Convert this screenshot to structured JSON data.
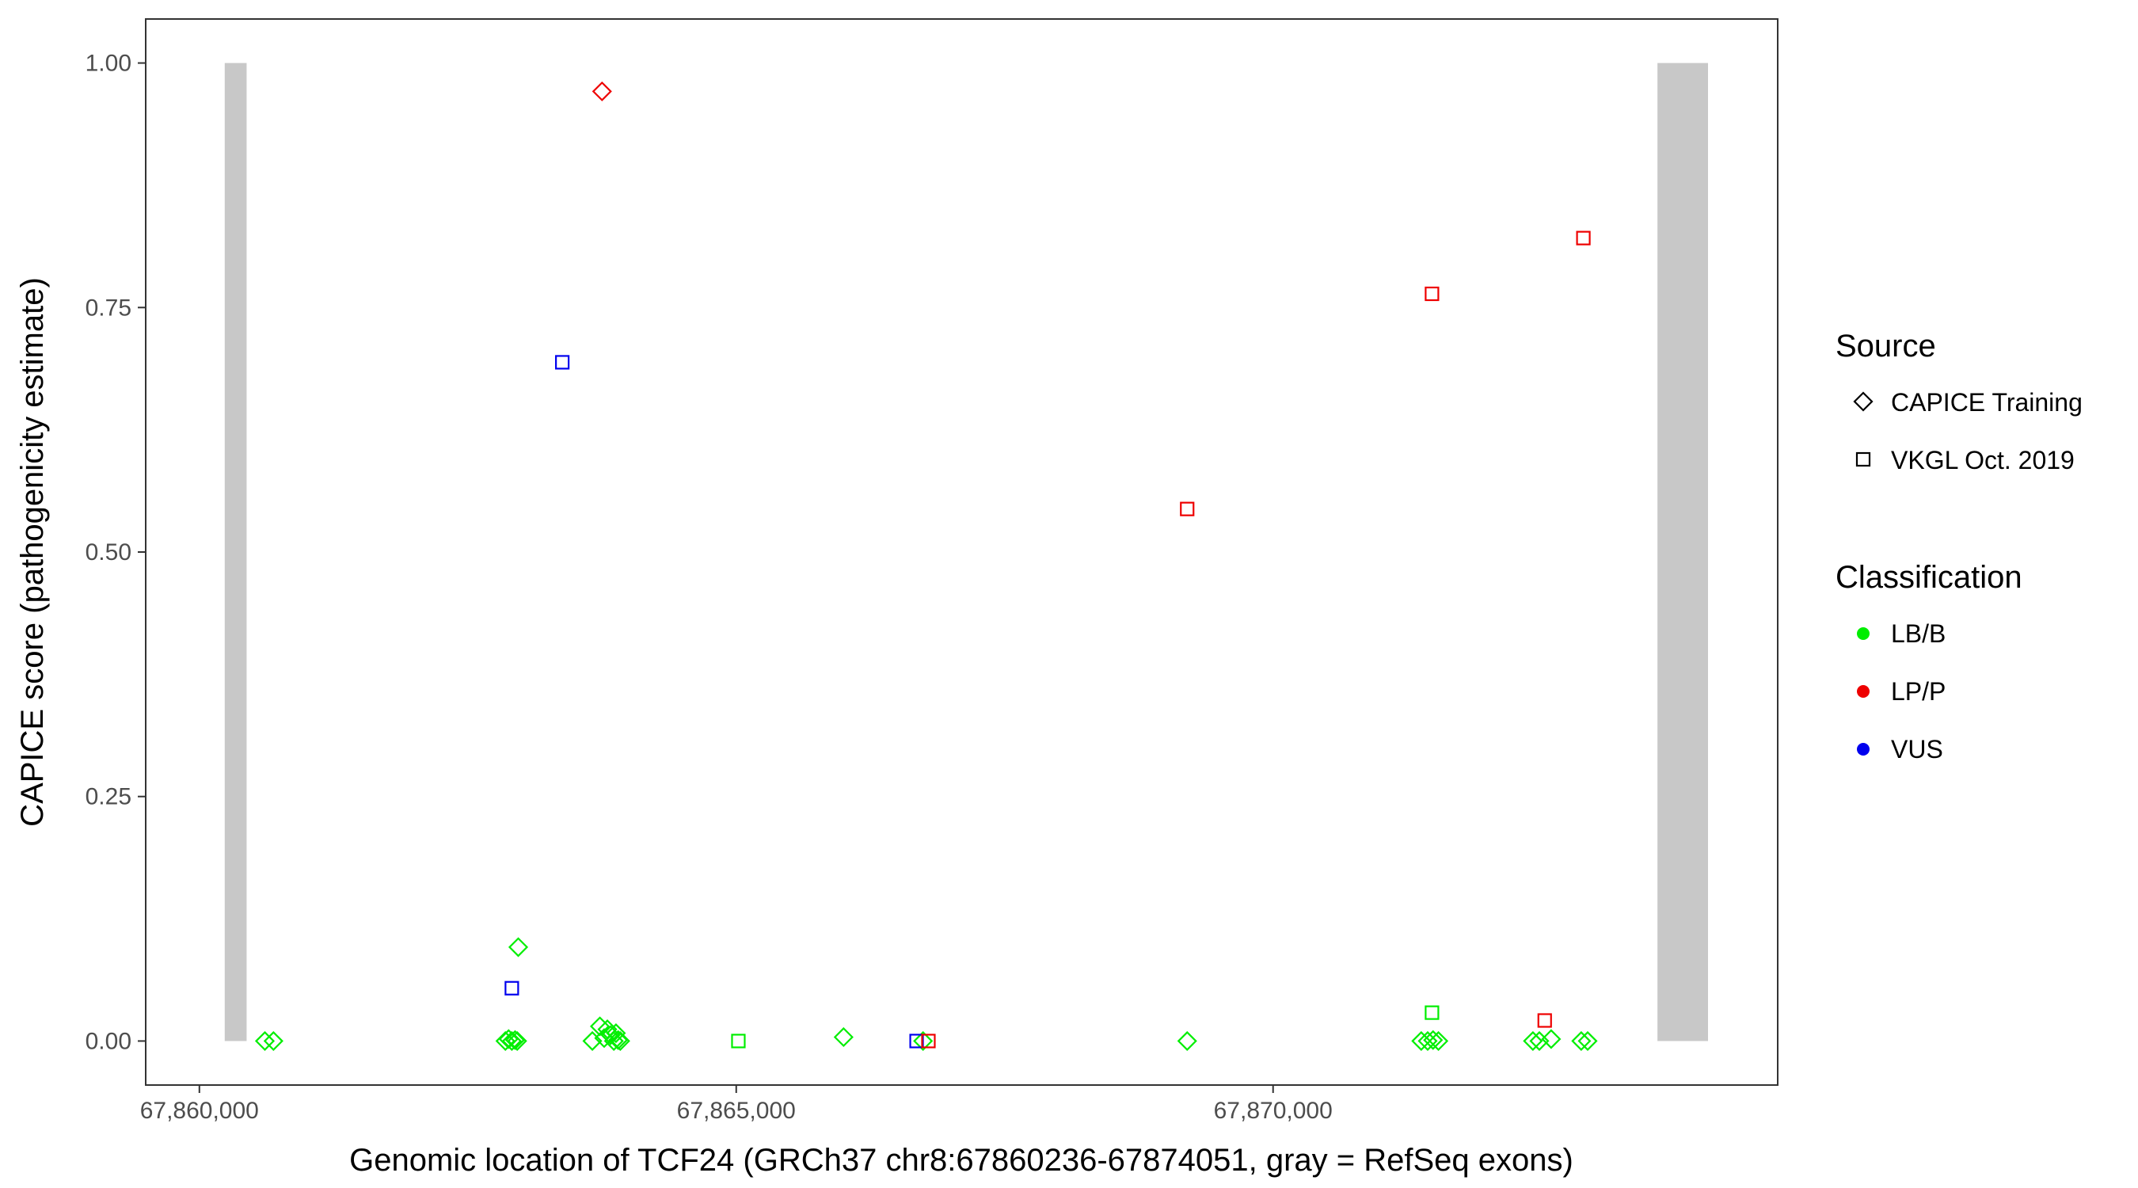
{
  "chart_data": {
    "type": "scatter",
    "title": "",
    "xlabel": "Genomic location of TCF24 (GRCh37 chr8:67860236-67874051, gray = RefSeq exons)",
    "ylabel": "CAPICE score (pathogenicity estimate)",
    "xlim": [
      67859500,
      67874700
    ],
    "ylim": [
      -0.045,
      1.045
    ],
    "x_ticks": [
      67860000,
      67865000,
      67870000
    ],
    "x_tick_labels": [
      "67,860,000",
      "67,865,000",
      "67,870,000"
    ],
    "y_ticks": [
      0,
      0.25,
      0.5,
      0.75,
      1.0
    ],
    "y_tick_labels": [
      "0.00",
      "0.25",
      "0.50",
      "0.75",
      "1.00"
    ],
    "grid": false,
    "exons": [
      {
        "start": 67860236,
        "end": 67860440,
        "ymin": 0,
        "ymax": 1
      },
      {
        "start": 67873580,
        "end": 67874051,
        "ymin": 0,
        "ymax": 1
      }
    ],
    "legend_position": "right",
    "legend_source": {
      "title": "Source",
      "items": [
        {
          "label": "CAPICE Training",
          "shape": "diamond"
        },
        {
          "label": "VKGL Oct. 2019",
          "shape": "square"
        }
      ]
    },
    "legend_classification": {
      "title": "Classification",
      "items": [
        {
          "label": "LB/B",
          "color": "#00ee00"
        },
        {
          "label": "LP/P",
          "color": "#ee0000"
        },
        {
          "label": "VUS",
          "color": "#0000ee"
        }
      ]
    },
    "points": [
      {
        "x": 67860610,
        "y": 0.0,
        "source": "CAPICE Training",
        "cls": "LB/B"
      },
      {
        "x": 67860690,
        "y": 0.0,
        "source": "CAPICE Training",
        "cls": "LB/B"
      },
      {
        "x": 67862850,
        "y": 0.0,
        "source": "CAPICE Training",
        "cls": "LB/B"
      },
      {
        "x": 67862880,
        "y": 0.002,
        "source": "CAPICE Training",
        "cls": "LB/B"
      },
      {
        "x": 67862910,
        "y": 0.0,
        "source": "CAPICE Training",
        "cls": "LB/B"
      },
      {
        "x": 67862940,
        "y": 0.001,
        "source": "CAPICE Training",
        "cls": "LB/B"
      },
      {
        "x": 67862960,
        "y": 0.0,
        "source": "CAPICE Training",
        "cls": "LB/B"
      },
      {
        "x": 67862970,
        "y": 0.096,
        "source": "CAPICE Training",
        "cls": "LB/B"
      },
      {
        "x": 67862910,
        "y": 0.054,
        "source": "VKGL Oct. 2019",
        "cls": "VUS"
      },
      {
        "x": 67863380,
        "y": 0.694,
        "source": "VKGL Oct. 2019",
        "cls": "VUS"
      },
      {
        "x": 67863750,
        "y": 0.971,
        "source": "CAPICE Training",
        "cls": "LP/P"
      },
      {
        "x": 67863660,
        "y": 0.0,
        "source": "CAPICE Training",
        "cls": "LB/B"
      },
      {
        "x": 67863730,
        "y": 0.015,
        "source": "CAPICE Training",
        "cls": "LB/B"
      },
      {
        "x": 67863770,
        "y": 0.003,
        "source": "CAPICE Training",
        "cls": "LB/B"
      },
      {
        "x": 67863800,
        "y": 0.012,
        "source": "CAPICE Training",
        "cls": "LB/B"
      },
      {
        "x": 67863830,
        "y": 0.006,
        "source": "CAPICE Training",
        "cls": "LB/B"
      },
      {
        "x": 67863860,
        "y": 0.0,
        "source": "CAPICE Training",
        "cls": "LB/B"
      },
      {
        "x": 67863880,
        "y": 0.008,
        "source": "CAPICE Training",
        "cls": "LB/B"
      },
      {
        "x": 67863900,
        "y": 0.001,
        "source": "CAPICE Training",
        "cls": "LB/B"
      },
      {
        "x": 67863920,
        "y": 0.0,
        "source": "CAPICE Training",
        "cls": "LB/B"
      },
      {
        "x": 67865020,
        "y": 0.0,
        "source": "VKGL Oct. 2019",
        "cls": "LB/B"
      },
      {
        "x": 67866000,
        "y": 0.004,
        "source": "CAPICE Training",
        "cls": "LB/B"
      },
      {
        "x": 67866740,
        "y": 0.0,
        "source": "CAPICE Training",
        "cls": "LB/B"
      },
      {
        "x": 67866680,
        "y": 0.0,
        "source": "VKGL Oct. 2019",
        "cls": "VUS"
      },
      {
        "x": 67866790,
        "y": 0.0,
        "source": "VKGL Oct. 2019",
        "cls": "LP/P"
      },
      {
        "x": 67869200,
        "y": 0.0,
        "source": "CAPICE Training",
        "cls": "LB/B"
      },
      {
        "x": 67869200,
        "y": 0.544,
        "source": "VKGL Oct. 2019",
        "cls": "LP/P"
      },
      {
        "x": 67871480,
        "y": 0.764,
        "source": "VKGL Oct. 2019",
        "cls": "LP/P"
      },
      {
        "x": 67871480,
        "y": 0.029,
        "source": "VKGL Oct. 2019",
        "cls": "LB/B"
      },
      {
        "x": 67871380,
        "y": 0.0,
        "source": "CAPICE Training",
        "cls": "LB/B"
      },
      {
        "x": 67871440,
        "y": 0.0,
        "source": "CAPICE Training",
        "cls": "LB/B"
      },
      {
        "x": 67871490,
        "y": 0.001,
        "source": "CAPICE Training",
        "cls": "LB/B"
      },
      {
        "x": 67871540,
        "y": 0.0,
        "source": "CAPICE Training",
        "cls": "LB/B"
      },
      {
        "x": 67872420,
        "y": 0.0,
        "source": "CAPICE Training",
        "cls": "LB/B"
      },
      {
        "x": 67872480,
        "y": 0.0,
        "source": "CAPICE Training",
        "cls": "LB/B"
      },
      {
        "x": 67872590,
        "y": 0.002,
        "source": "CAPICE Training",
        "cls": "LB/B"
      },
      {
        "x": 67872530,
        "y": 0.021,
        "source": "VKGL Oct. 2019",
        "cls": "LP/P"
      },
      {
        "x": 67872870,
        "y": 0.0,
        "source": "CAPICE Training",
        "cls": "LB/B"
      },
      {
        "x": 67872930,
        "y": 0.0,
        "source": "CAPICE Training",
        "cls": "LB/B"
      },
      {
        "x": 67872890,
        "y": 0.821,
        "source": "VKGL Oct. 2019",
        "cls": "LP/P"
      }
    ]
  }
}
